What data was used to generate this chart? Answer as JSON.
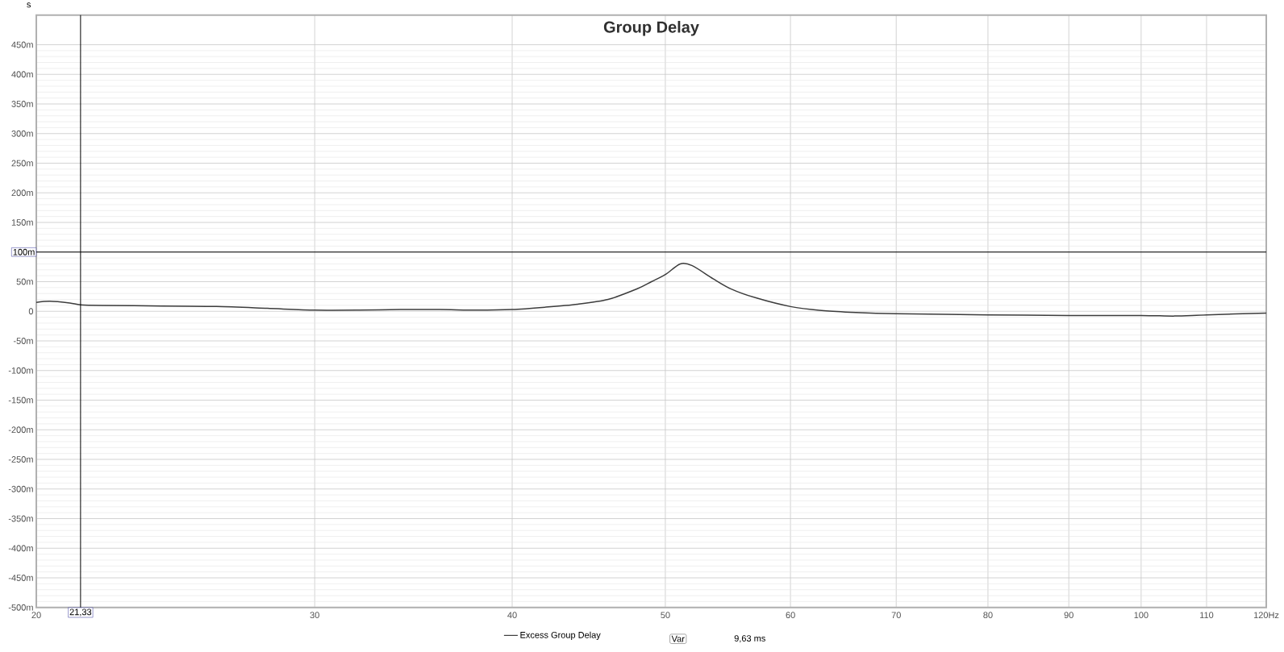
{
  "chart_data": {
    "type": "line",
    "title": "Group Delay",
    "ylabel": "s",
    "log": "x",
    "grid": true,
    "legend": "bottom",
    "xlim": [
      20,
      120
    ],
    "ylim": [
      -500,
      500
    ],
    "xticks": [
      20,
      30,
      40,
      50,
      60,
      70,
      80,
      90,
      100,
      110,
      {
        "value": 120,
        "label": "120Hz"
      }
    ],
    "yticks": [
      {
        "value": -500,
        "label": "-500m"
      },
      {
        "value": -450,
        "label": "-450m"
      },
      {
        "value": -400,
        "label": "-400m"
      },
      {
        "value": -350,
        "label": "-350m"
      },
      {
        "value": -300,
        "label": "-300m"
      },
      {
        "value": -250,
        "label": "-250m"
      },
      {
        "value": -200,
        "label": "-200m"
      },
      {
        "value": -150,
        "label": "-150m"
      },
      {
        "value": -100,
        "label": "-100m"
      },
      {
        "value": -50,
        "label": "-50m"
      },
      0,
      {
        "value": 50,
        "label": "50m"
      },
      {
        "value": 100,
        "label": null
      },
      {
        "value": 150,
        "label": "150m"
      },
      {
        "value": 200,
        "label": "200m"
      },
      {
        "value": 250,
        "label": "250m"
      },
      {
        "value": 300,
        "label": "300m"
      },
      {
        "value": 350,
        "label": "350m"
      },
      {
        "value": 400,
        "label": "400m"
      },
      {
        "value": 450,
        "label": "450m"
      }
    ],
    "x": [
      20,
      20.4,
      21,
      21.33,
      22,
      24,
      26,
      28,
      30,
      32,
      34,
      36,
      38,
      40,
      42,
      44,
      46,
      48,
      49,
      50,
      51.1,
      52,
      53.6,
      55,
      57,
      60,
      63,
      66,
      70,
      80,
      90,
      100,
      105,
      110,
      120
    ],
    "series": [
      {
        "name": "Excess Group Delay",
        "color": "#3c3c3c",
        "values": [
          15,
          17,
          14,
          11,
          10,
          9,
          8,
          5,
          2,
          2,
          3,
          3,
          2,
          3,
          7,
          12,
          20,
          38,
          50,
          62,
          80,
          77,
          55,
          38,
          23,
          8,
          1,
          -2,
          -4,
          -6,
          -7,
          -7,
          -8,
          -6,
          -3
        ]
      }
    ],
    "ref_lines": [
      {
        "axis": "y",
        "value": 100,
        "label": "100m",
        "color": "#000000"
      },
      {
        "axis": "x",
        "value": 21.33,
        "label": "21,33",
        "color": "#000000"
      }
    ],
    "annotations": [
      "Var",
      "9,63 ms"
    ]
  }
}
